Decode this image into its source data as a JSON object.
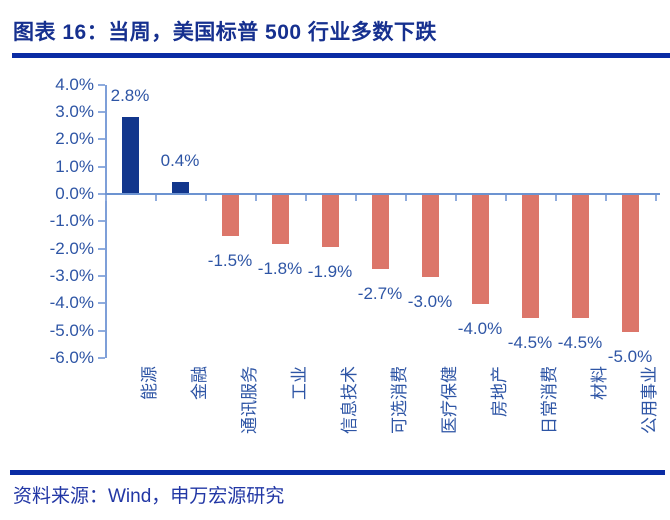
{
  "figure": {
    "title": "图表 16：当周，美国标普 500 行业多数下跌",
    "source": "资料来源：Wind，申万宏源研究"
  },
  "colors": {
    "title_text": "#16308F",
    "rule": "#0A2CA4",
    "axis_label": "#2E55A5",
    "data_label": "#2E55A5",
    "positive_bar": "#12368C",
    "negative_bar": "#DC766A",
    "y_axis_line": "#7E9FD8",
    "zero_line": "#6C93D1",
    "tick_mark": "#8FACDE",
    "source_text": "#2237A5"
  },
  "chart_data": {
    "type": "bar",
    "title": "当周，美国标普500行业多数下跌",
    "categories": [
      "能源",
      "金融",
      "通讯服务",
      "工业",
      "信息技术",
      "可选消费",
      "医疗保健",
      "房地产",
      "日常消费",
      "材料",
      "公用事业"
    ],
    "values": [
      2.8,
      0.4,
      -1.5,
      -1.8,
      -1.9,
      -2.7,
      -3.0,
      -4.0,
      -4.5,
      -4.5,
      -5.0
    ],
    "data_labels": [
      "2.8%",
      "0.4%",
      "-1.5%",
      "-1.8%",
      "-1.9%",
      "-2.7%",
      "-3.0%",
      "-4.0%",
      "-4.5%",
      "-4.5%",
      "-5.0%"
    ],
    "y_tick_labels": [
      "4.0%",
      "3.0%",
      "2.0%",
      "1.0%",
      "0.0%",
      "-1.0%",
      "-2.0%",
      "-3.0%",
      "-4.0%",
      "-5.0%",
      "-6.0%"
    ],
    "y_tick_values": [
      4,
      3,
      2,
      1,
      0,
      -1,
      -2,
      -3,
      -4,
      -5,
      -6
    ],
    "ylim": [
      -6.0,
      4.0
    ],
    "unit": "percent",
    "grid": false,
    "legend": null,
    "xlabel": "",
    "ylabel": ""
  }
}
